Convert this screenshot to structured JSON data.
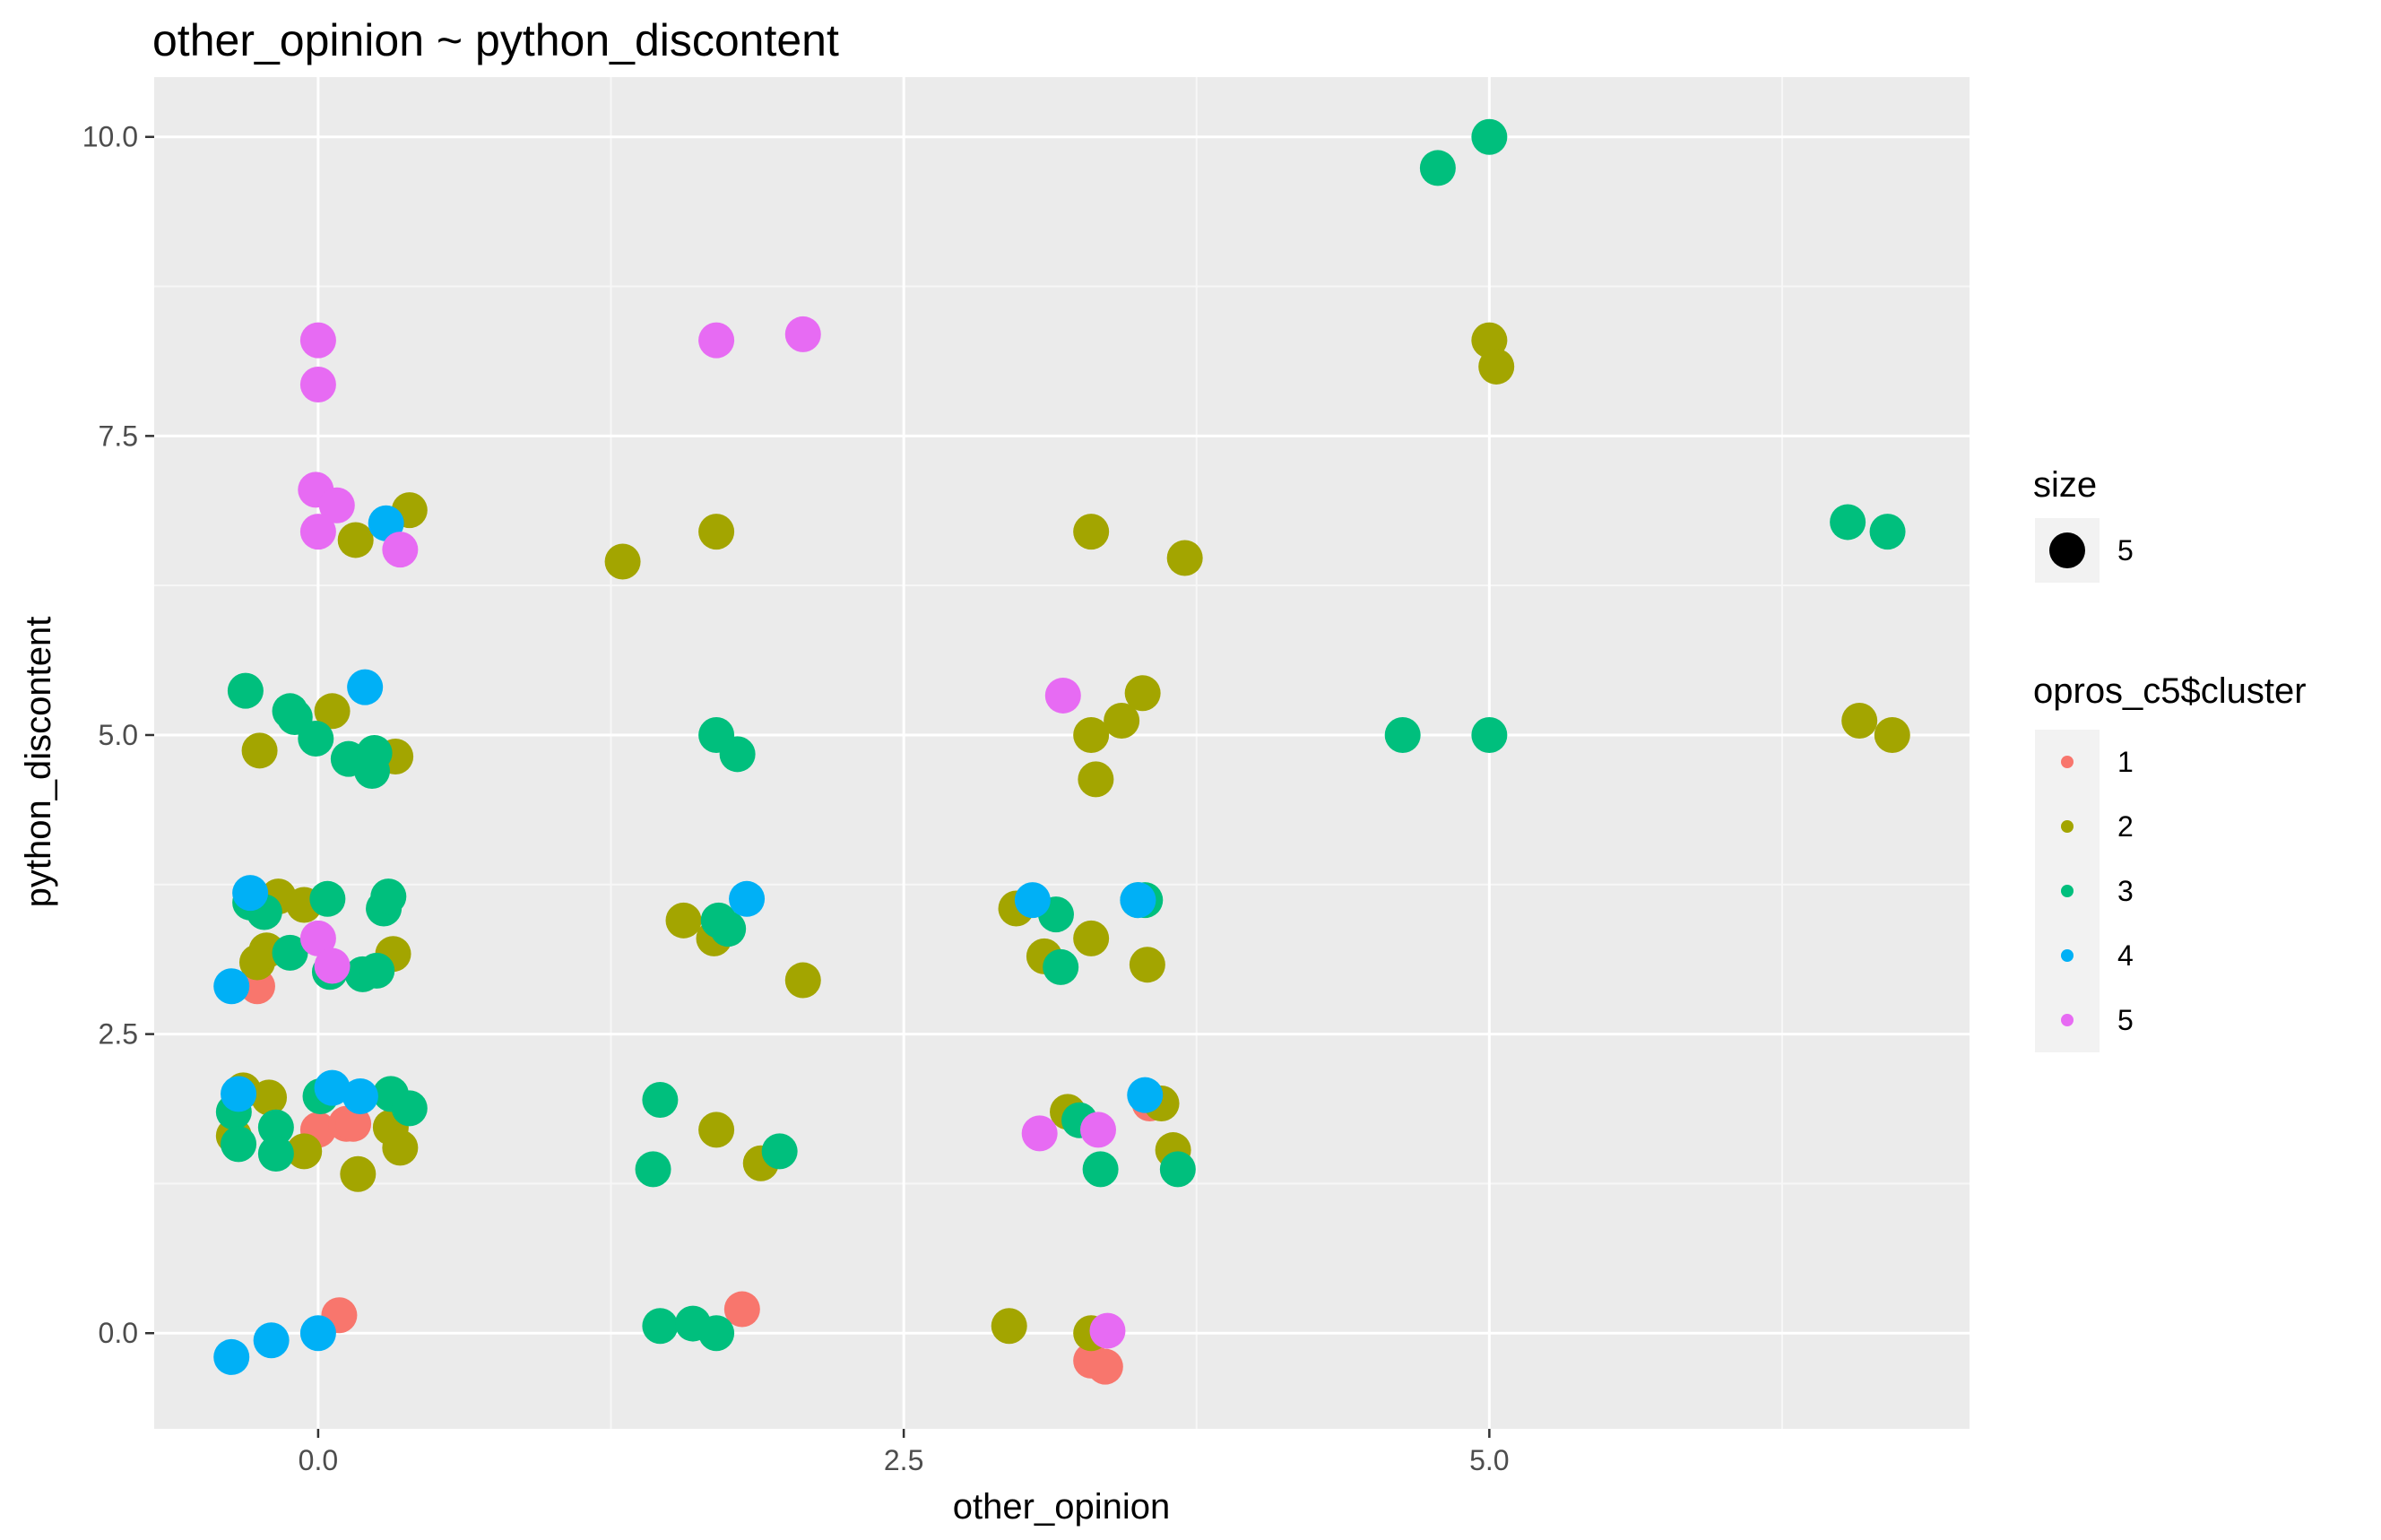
{
  "chart_data": {
    "type": "scatter",
    "title": "other_opinion ~ python_discontent",
    "xlabel": "other_opinion",
    "ylabel": "python_discontent",
    "xlim": [
      -0.7,
      7.05
    ],
    "ylim": [
      -0.8,
      10.5
    ],
    "x_ticks": [
      0.0,
      2.5,
      5.0
    ],
    "x_tick_labels": [
      "0.0",
      "2.5",
      "5.0"
    ],
    "y_ticks": [
      0.0,
      2.5,
      5.0,
      7.5,
      10.0
    ],
    "y_tick_labels": [
      "0.0",
      "2.5",
      "5.0",
      "7.5",
      "10.0"
    ],
    "grid": true,
    "legend_position": "right",
    "size_legend": {
      "title": "size",
      "labels": [
        "5"
      ]
    },
    "color_legend": {
      "title": "opros_c5$cluster",
      "entries": [
        {
          "label": "1",
          "color": "#F8766D"
        },
        {
          "label": "2",
          "color": "#A3A500"
        },
        {
          "label": "3",
          "color": "#00BF7D"
        },
        {
          "label": "4",
          "color": "#00B0F6"
        },
        {
          "label": "5",
          "color": "#E76BF3"
        }
      ]
    },
    "series": [
      {
        "cluster": "1",
        "color": "#F8766D",
        "points": [
          [
            -0.26,
            2.9
          ],
          [
            0.0,
            1.7
          ],
          [
            0.12,
            1.75
          ],
          [
            0.15,
            1.75
          ],
          [
            0.09,
            0.15
          ],
          [
            1.81,
            0.2
          ],
          [
            3.3,
            -0.23
          ],
          [
            3.36,
            -0.28
          ],
          [
            3.55,
            1.92
          ]
        ]
      },
      {
        "cluster": "2",
        "color": "#A3A500",
        "points": [
          [
            -0.32,
            2.03
          ],
          [
            -0.36,
            1.65
          ],
          [
            -0.21,
            1.97
          ],
          [
            -0.06,
            1.52
          ],
          [
            0.31,
            1.72
          ],
          [
            0.35,
            1.55
          ],
          [
            0.17,
            1.33
          ],
          [
            -0.26,
            3.1
          ],
          [
            -0.22,
            3.2
          ],
          [
            -0.17,
            3.65
          ],
          [
            -0.06,
            3.58
          ],
          [
            0.32,
            3.17
          ],
          [
            -0.25,
            4.87
          ],
          [
            0.06,
            5.2
          ],
          [
            0.33,
            4.82
          ],
          [
            0.16,
            6.63
          ],
          [
            0.39,
            6.88
          ],
          [
            1.3,
            6.45
          ],
          [
            1.7,
            6.7
          ],
          [
            1.56,
            3.45
          ],
          [
            1.69,
            3.3
          ],
          [
            2.07,
            2.95
          ],
          [
            1.7,
            1.7
          ],
          [
            1.89,
            1.42
          ],
          [
            2.95,
            0.06
          ],
          [
            3.3,
            0.0
          ],
          [
            2.98,
            3.55
          ],
          [
            3.1,
            3.15
          ],
          [
            3.3,
            3.3
          ],
          [
            3.54,
            3.08
          ],
          [
            3.2,
            1.85
          ],
          [
            3.6,
            1.92
          ],
          [
            3.65,
            1.53
          ],
          [
            3.3,
            5.0
          ],
          [
            3.32,
            4.63
          ],
          [
            3.43,
            5.12
          ],
          [
            3.52,
            5.35
          ],
          [
            3.3,
            6.7
          ],
          [
            3.7,
            6.48
          ],
          [
            5.0,
            8.3
          ],
          [
            5.03,
            8.08
          ],
          [
            6.58,
            5.12
          ],
          [
            6.72,
            5.0
          ]
        ]
      },
      {
        "cluster": "3",
        "color": "#00BF7D",
        "points": [
          [
            -0.36,
            1.85
          ],
          [
            -0.34,
            1.58
          ],
          [
            -0.18,
            1.72
          ],
          [
            -0.18,
            1.5
          ],
          [
            0.01,
            1.98
          ],
          [
            0.31,
            2.0
          ],
          [
            0.39,
            1.88
          ],
          [
            -0.29,
            3.6
          ],
          [
            -0.23,
            3.52
          ],
          [
            -0.12,
            3.18
          ],
          [
            0.05,
            3.02
          ],
          [
            0.04,
            3.63
          ],
          [
            0.19,
            3.0
          ],
          [
            0.25,
            3.03
          ],
          [
            0.28,
            3.55
          ],
          [
            0.3,
            3.65
          ],
          [
            -0.31,
            5.37
          ],
          [
            -0.12,
            5.2
          ],
          [
            -0.1,
            5.15
          ],
          [
            -0.01,
            4.97
          ],
          [
            0.13,
            4.8
          ],
          [
            0.23,
            4.7
          ],
          [
            0.24,
            4.85
          ],
          [
            1.46,
            1.95
          ],
          [
            1.43,
            1.37
          ],
          [
            1.97,
            1.52
          ],
          [
            1.46,
            0.06
          ],
          [
            1.6,
            0.08
          ],
          [
            1.7,
            0.0
          ],
          [
            1.71,
            3.45
          ],
          [
            1.75,
            3.38
          ],
          [
            1.7,
            5.0
          ],
          [
            1.79,
            4.84
          ],
          [
            3.15,
            3.5
          ],
          [
            3.17,
            3.06
          ],
          [
            3.25,
            1.78
          ],
          [
            3.34,
            1.37
          ],
          [
            3.5,
            3.62
          ],
          [
            3.53,
            3.62
          ],
          [
            3.67,
            1.37
          ],
          [
            4.63,
            5.0
          ],
          [
            5.0,
            5.0
          ],
          [
            4.78,
            9.74
          ],
          [
            5.0,
            10.0
          ],
          [
            6.53,
            6.78
          ],
          [
            6.7,
            6.7
          ]
        ]
      },
      {
        "cluster": "4",
        "color": "#00B0F6",
        "points": [
          [
            -0.37,
            -0.2
          ],
          [
            -0.2,
            -0.06
          ],
          [
            0.0,
            0.0
          ],
          [
            -0.37,
            2.9
          ],
          [
            -0.34,
            2.0
          ],
          [
            0.06,
            2.05
          ],
          [
            0.18,
            1.98
          ],
          [
            -0.29,
            3.68
          ],
          [
            0.2,
            5.4
          ],
          [
            0.29,
            6.77
          ],
          [
            1.83,
            3.63
          ],
          [
            3.05,
            3.62
          ],
          [
            3.5,
            3.62
          ],
          [
            3.53,
            1.99
          ]
        ]
      },
      {
        "cluster": "5",
        "color": "#E76BF3",
        "points": [
          [
            0.0,
            8.3
          ],
          [
            0.0,
            7.93
          ],
          [
            -0.01,
            7.05
          ],
          [
            0.08,
            6.92
          ],
          [
            0.0,
            6.7
          ],
          [
            0.35,
            6.55
          ],
          [
            0.0,
            3.3
          ],
          [
            0.06,
            3.07
          ],
          [
            1.7,
            8.3
          ],
          [
            2.07,
            8.35
          ],
          [
            3.18,
            5.33
          ],
          [
            3.08,
            1.67
          ],
          [
            3.33,
            1.7
          ],
          [
            3.37,
            0.02
          ]
        ]
      }
    ]
  }
}
